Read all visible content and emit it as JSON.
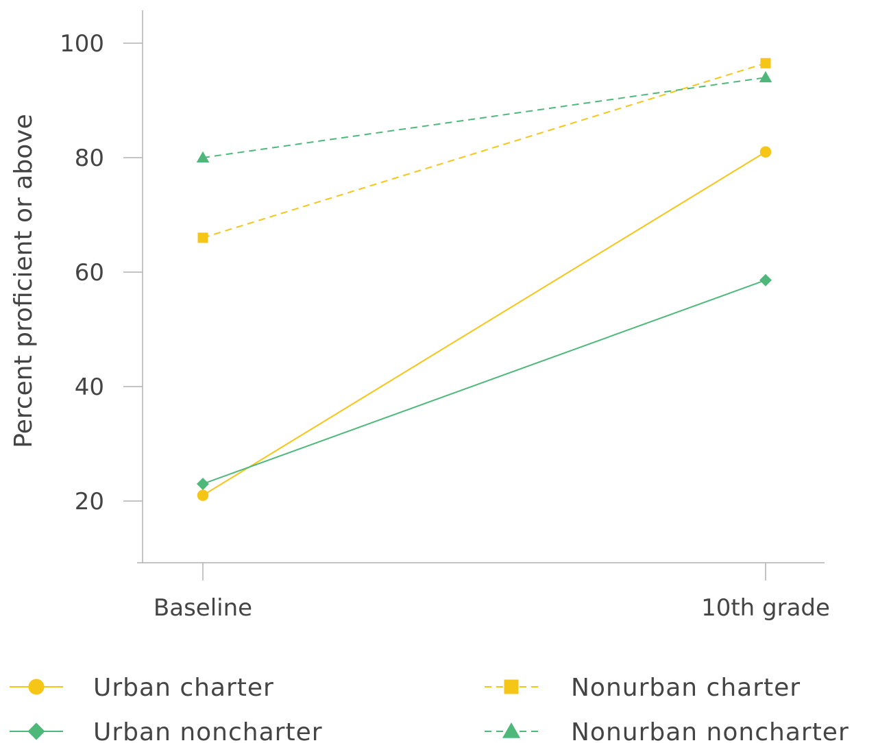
{
  "chart_data": {
    "type": "line",
    "categories": [
      "Baseline",
      "10th grade"
    ],
    "ylabel": "Percent proficient or above",
    "xlabel": "",
    "ylim": [
      10,
      105
    ],
    "yticks": [
      20,
      40,
      60,
      80,
      100
    ],
    "grid": false,
    "legend_position": "bottom",
    "series": [
      {
        "name": "Urban charter",
        "values": [
          21,
          81
        ],
        "color": "#F5C518",
        "dash": "solid",
        "marker": "circle"
      },
      {
        "name": "Urban noncharter",
        "values": [
          23,
          58.6
        ],
        "color": "#4DB87A",
        "dash": "solid",
        "marker": "diamond"
      },
      {
        "name": "Nonurban charter",
        "values": [
          66,
          96.5
        ],
        "color": "#F5C518",
        "dash": "dashed",
        "marker": "square"
      },
      {
        "name": "Nonurban noncharter",
        "values": [
          80,
          94
        ],
        "color": "#4DB87A",
        "dash": "dashed",
        "marker": "triangle"
      }
    ]
  }
}
